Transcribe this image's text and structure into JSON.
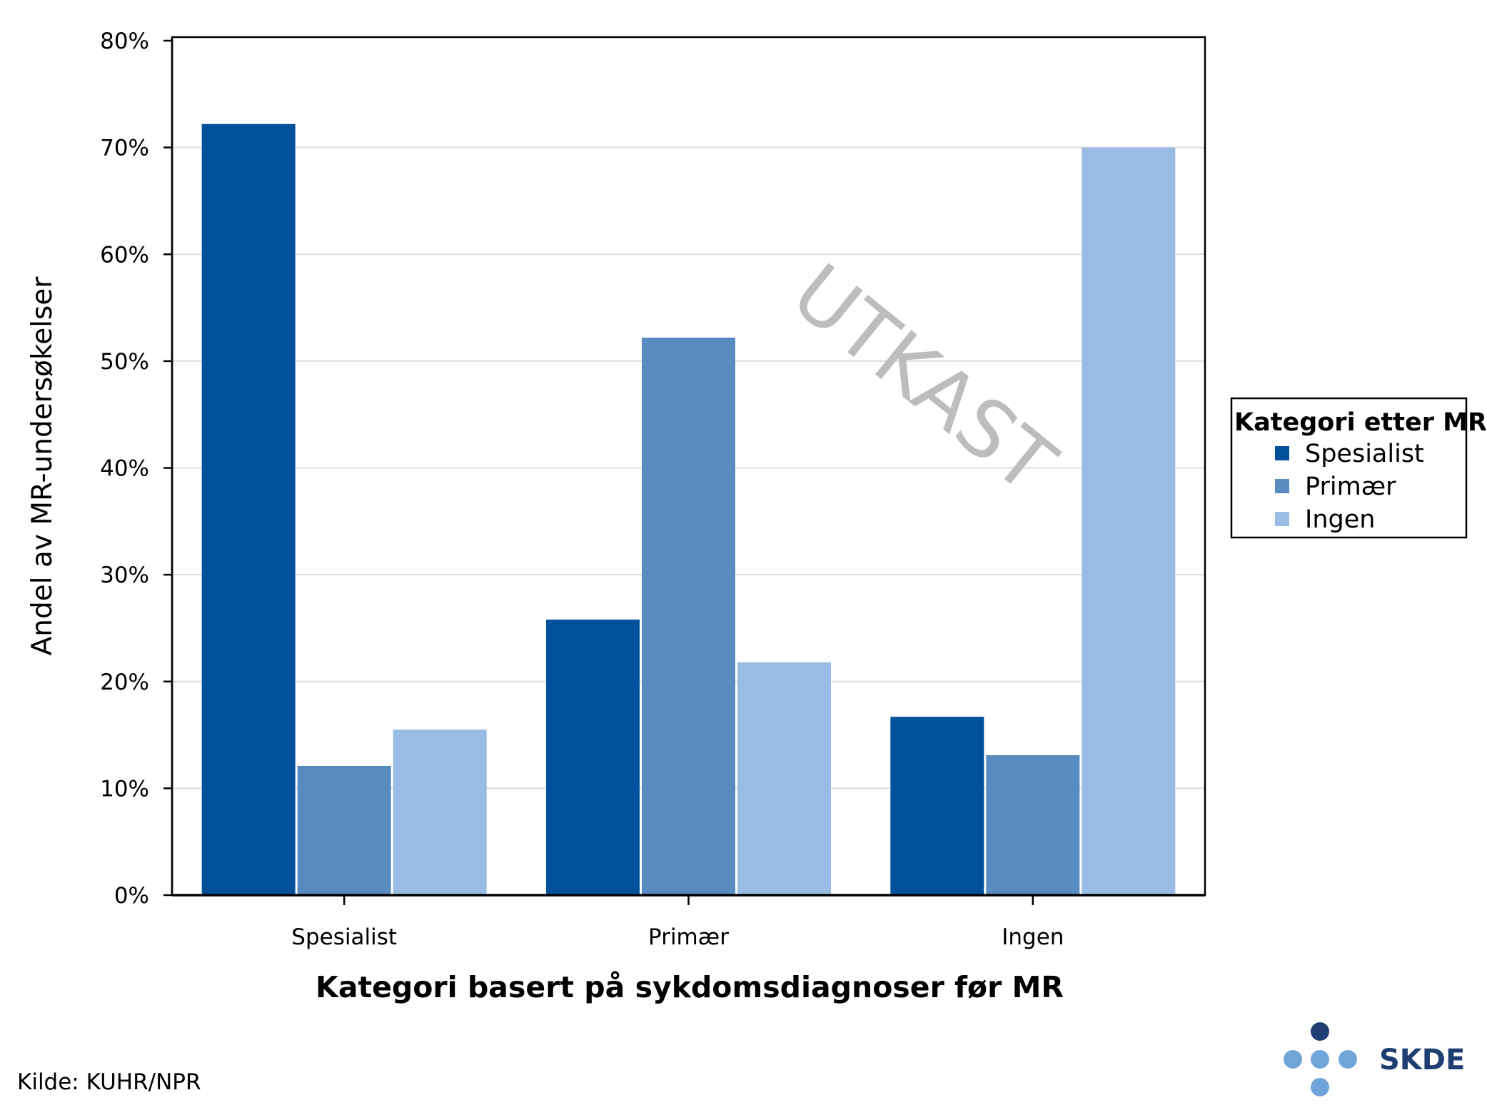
{
  "chart_data": {
    "type": "bar",
    "categories": [
      "Spesialist",
      "Primær",
      "Ingen"
    ],
    "series": [
      {
        "name": "Spesialist",
        "values": [
          72.2,
          25.8,
          16.7
        ]
      },
      {
        "name": "Primær",
        "values": [
          12.1,
          52.2,
          13.1
        ]
      },
      {
        "name": "Ingen",
        "values": [
          15.5,
          21.8,
          70.0
        ]
      }
    ],
    "colors": [
      "#00519c",
      "#588bbf",
      "#99bce4"
    ],
    "xlabel": "Kategori basert på sykdomsdiagnoser før MR",
    "ylabel": "Andel av MR-undersøkelser",
    "ylim": [
      0,
      80
    ],
    "yticks": [
      0,
      10,
      20,
      30,
      40,
      50,
      60,
      70,
      80
    ],
    "ytick_suffix": "%",
    "grid": true,
    "legend": {
      "title": "Kategori etter MR",
      "placement": "right"
    }
  },
  "watermark": "UTKAST",
  "source": "Kilde: KUHR/NPR",
  "logo": {
    "text": "SKDE",
    "dot_dark": "#1f3f73",
    "dot_light": "#6fa5d8"
  }
}
